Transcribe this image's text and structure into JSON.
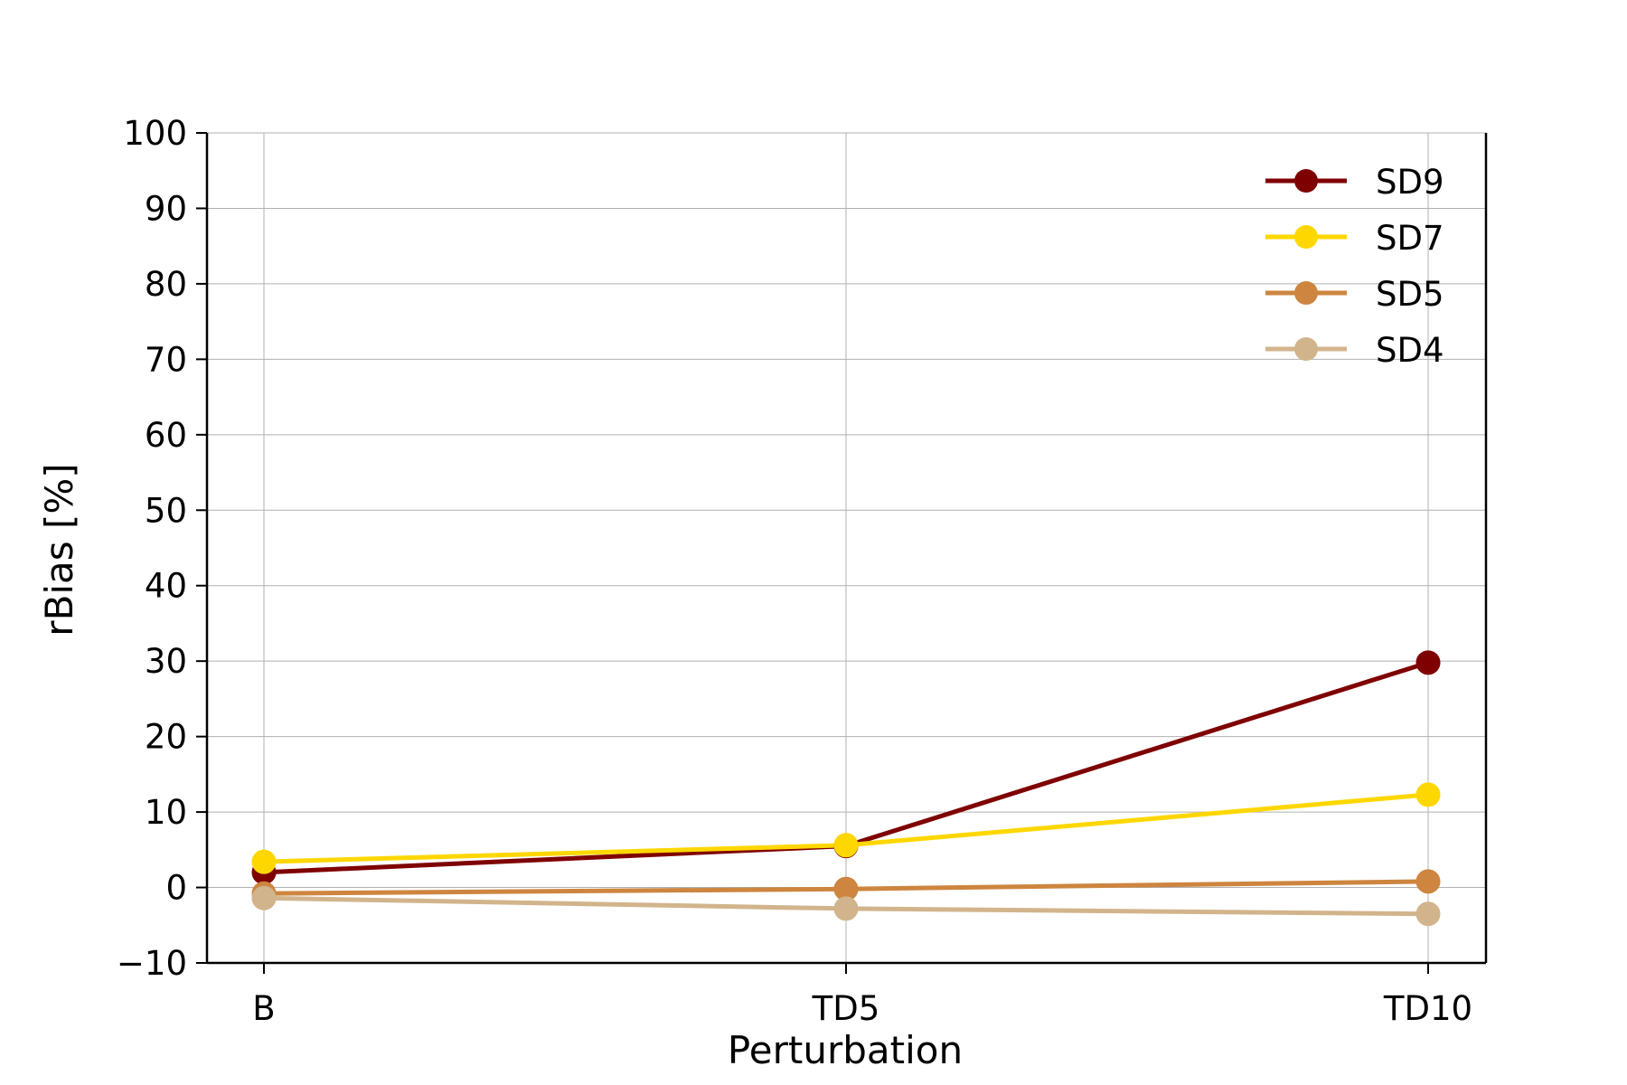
{
  "chart_data": {
    "type": "line",
    "title": "",
    "xlabel": "Perturbation",
    "ylabel": "rBias [%]",
    "categories": [
      "B",
      "TD5",
      "TD10"
    ],
    "ylim": [
      -10,
      100
    ],
    "yticks": [
      -10,
      0,
      10,
      20,
      30,
      40,
      50,
      60,
      70,
      80,
      90,
      100
    ],
    "ytick_labels": [
      "−10",
      "0",
      "10",
      "20",
      "30",
      "40",
      "50",
      "60",
      "70",
      "80",
      "90",
      "100"
    ],
    "grid": true,
    "legend_position": "top-right",
    "series": [
      {
        "name": "SD9",
        "color": "#7f0000",
        "values": [
          2.0,
          5.5,
          29.8
        ]
      },
      {
        "name": "SD7",
        "color": "#ffd700",
        "values": [
          3.4,
          5.6,
          12.3
        ]
      },
      {
        "name": "SD5",
        "color": "#cd853f",
        "values": [
          -0.8,
          -0.2,
          0.8
        ]
      },
      {
        "name": "SD4",
        "color": "#d2b48c",
        "values": [
          -1.4,
          -2.8,
          -3.5
        ]
      }
    ]
  }
}
